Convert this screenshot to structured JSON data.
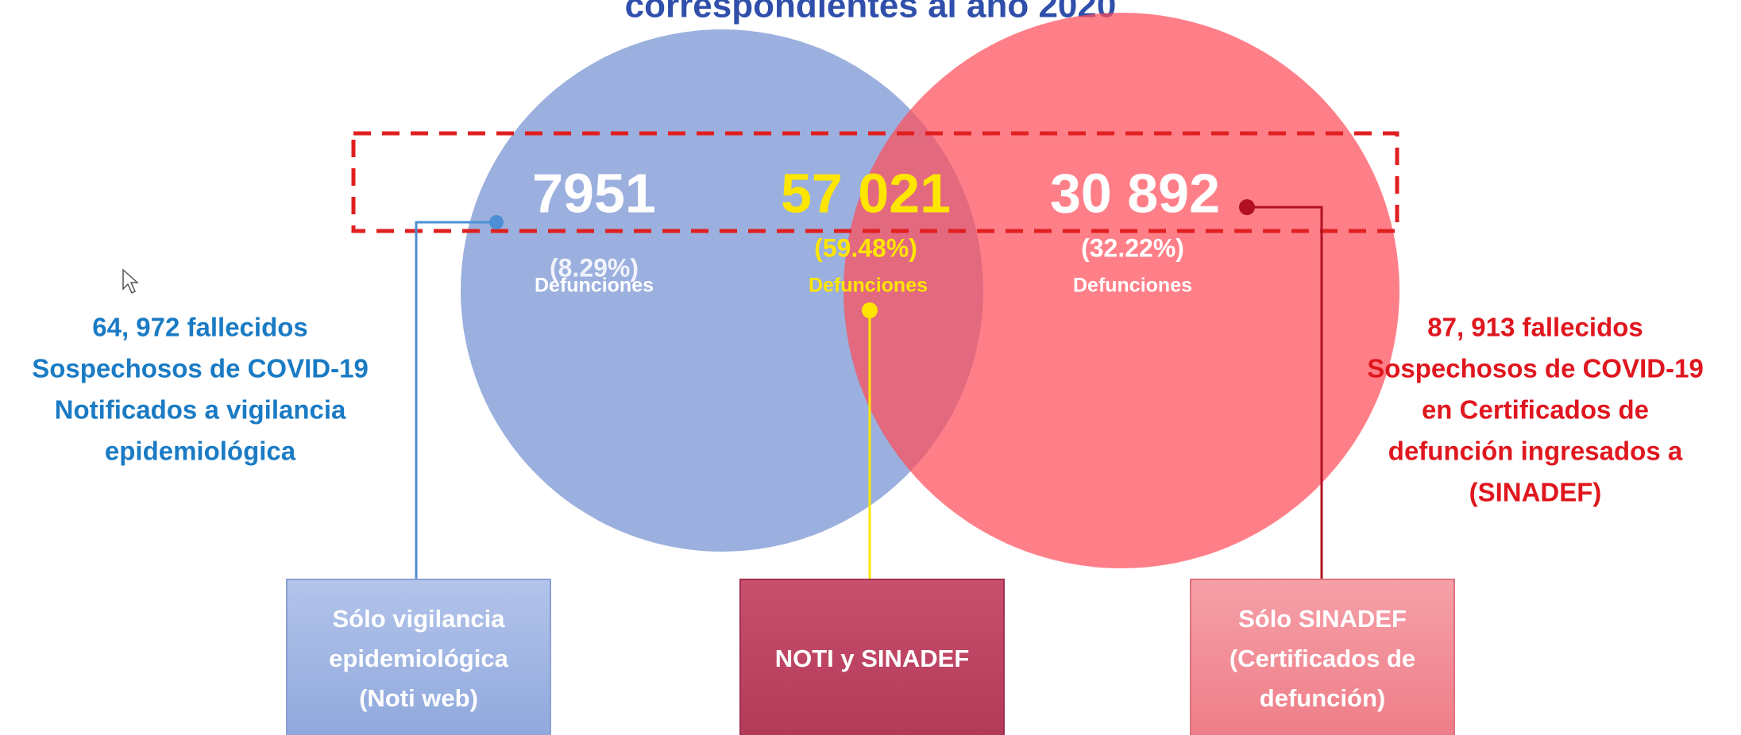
{
  "header": {
    "title": "correspondientes al año 2020"
  },
  "venn": {
    "left": {
      "count": "7951",
      "percent": "(8.29%)",
      "unit": "Defunciones"
    },
    "center": {
      "count": "57 021",
      "percent": "(59.48%)",
      "unit": "Defunciones"
    },
    "right": {
      "count": "30 892",
      "percent": "(32.22%)",
      "unit": "Defunciones"
    }
  },
  "left_note": {
    "lines": [
      "64, 972 fallecidos",
      "Sospechosos de COVID-19",
      "Notificados a vigilancia",
      "epidemiológica"
    ]
  },
  "right_note": {
    "lines": [
      "87, 913 fallecidos",
      "Sospechosos de COVID-19",
      "en Certificados de",
      "defunción ingresados a",
      "(SINADEF)"
    ]
  },
  "boxes": [
    {
      "lines": [
        "Sólo vigilancia",
        "epidemiológica",
        "(Noti web)"
      ]
    },
    {
      "lines": [
        "NOTI y SINADEF"
      ]
    },
    {
      "lines": [
        "Sólo SINADEF",
        "(Certificados de",
        "defunción)"
      ]
    }
  ]
}
